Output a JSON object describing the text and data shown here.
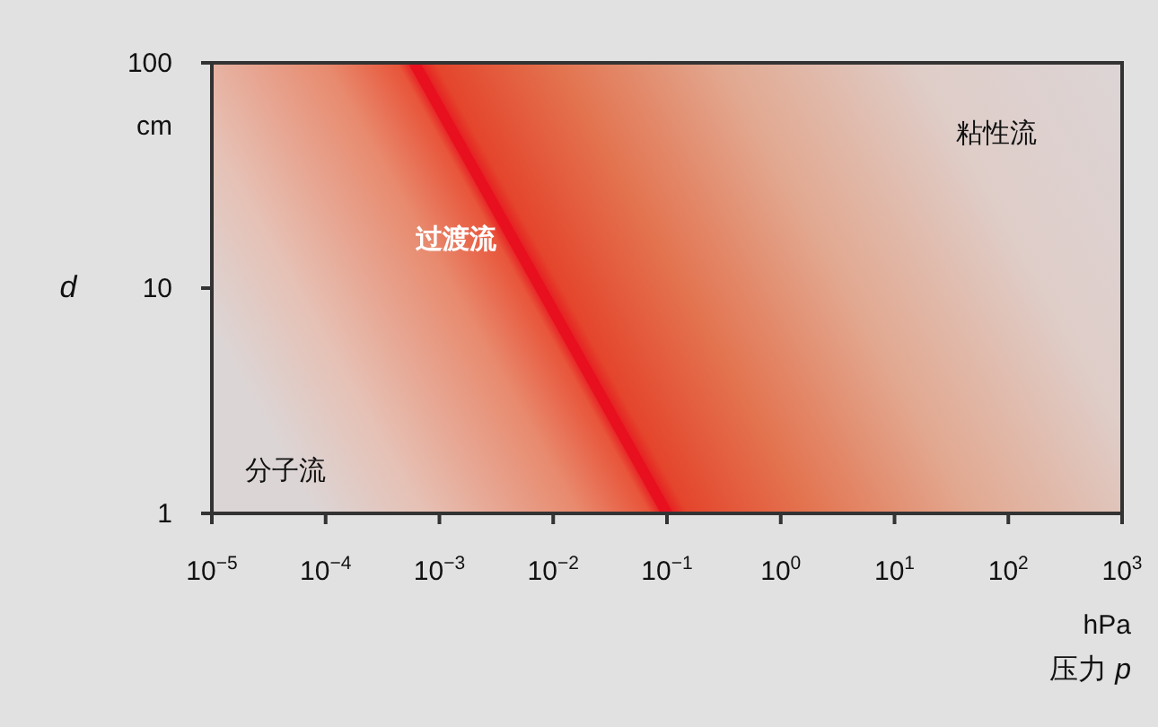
{
  "chart_data": {
    "type": "line",
    "log": "xy",
    "ylabel": "d",
    "xlabel": "压力 p",
    "xlim": [
      1e-05,
      1000
    ],
    "ylim": [
      1,
      100
    ],
    "xticks": [
      {
        "value": 1e-05,
        "label": "10$^{−5}$"
      },
      {
        "value": 0.0001,
        "label": "10$^{−4}$"
      },
      {
        "value": 0.001,
        "label": "10$^{−3}$"
      },
      {
        "value": 0.01,
        "label": "10$^{−2}$"
      },
      {
        "value": 0.1,
        "label": "10$^{−1}$"
      },
      {
        "value": 1,
        "label": "10$^{0}$"
      },
      {
        "value": 10,
        "label": "10$^{1}$"
      },
      {
        "value": 100,
        "label": "10$^{2}$"
      },
      {
        "value": 1000,
        "label": "10$^{3}$"
      }
    ],
    "yticks": [
      1,
      10,
      100
    ],
    "series": [
      {
        "color": "#e8101e",
        "x": [
          0.0006,
          0.1
        ],
        "values": [
          100,
          1
        ]
      }
    ],
    "annotations": [
      "hPa",
      "cm",
      "分子流",
      "过渡流",
      "粘性流"
    ],
    "grid": false,
    "line_style": "solid"
  }
}
